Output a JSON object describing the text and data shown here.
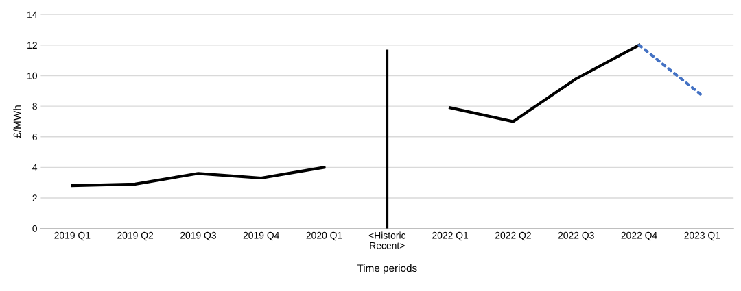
{
  "chart_data": {
    "type": "line",
    "xlabel": "Time periods",
    "ylabel": "£/MWh",
    "categories": [
      "2019 Q1",
      "2019 Q2",
      "2019 Q3",
      "2019 Q4",
      "2020 Q1",
      "<Historic\nRecent>",
      "2022 Q1",
      "2022 Q2",
      "2022 Q3",
      "2022 Q4",
      "2023 Q1"
    ],
    "series": [
      {
        "color": "#000000",
        "values": [
          2.8,
          2.9,
          3.6,
          3.3,
          4.0,
          null,
          7.9,
          7.0,
          9.8,
          12.0,
          null
        ]
      },
      {
        "type": "bar",
        "color": "#000000",
        "values": [
          null,
          null,
          null,
          null,
          null,
          11.7,
          null,
          null,
          null,
          null,
          null
        ]
      },
      {
        "color": "#4472c4",
        "line_style": "dotted",
        "values": [
          null,
          null,
          null,
          null,
          null,
          null,
          null,
          null,
          null,
          12.0,
          8.7
        ]
      }
    ],
    "ylim": [
      0,
      14
    ],
    "yticks": [
      0,
      2,
      4,
      6,
      8,
      10,
      12,
      14
    ],
    "grid": "y",
    "legend": false,
    "line_style": "solid"
  }
}
